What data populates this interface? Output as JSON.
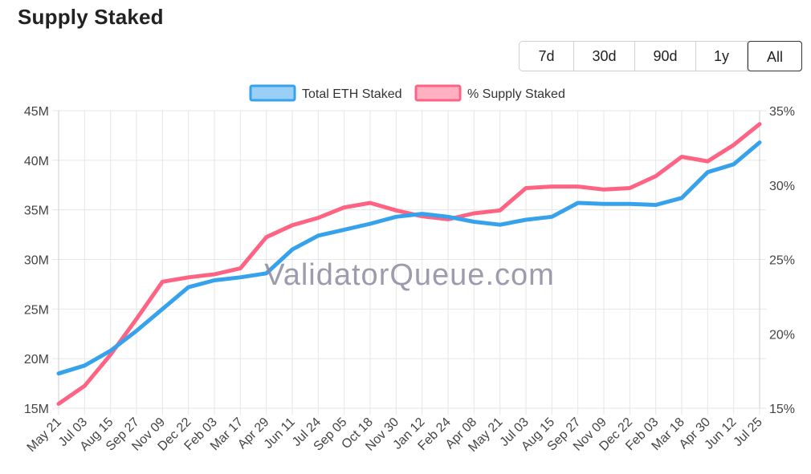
{
  "header": {
    "title": "Supply Staked"
  },
  "range_buttons": [
    {
      "label": "7d",
      "active": false
    },
    {
      "label": "30d",
      "active": false
    },
    {
      "label": "90d",
      "active": false
    },
    {
      "label": "1y",
      "active": false
    },
    {
      "label": "All",
      "active": true
    }
  ],
  "watermark": "ValidatorQueue.com",
  "colors": {
    "total_eth": "#36a2eb",
    "pct_supply": "#ff6384",
    "grid": "#e6e6e6"
  },
  "chart_data": {
    "type": "line",
    "x_tick_labels": [
      "May 21",
      "Jul 03",
      "Aug 15",
      "Sep 27",
      "Nov 09",
      "Dec 22",
      "Feb 03",
      "Mar 17",
      "Apr 29",
      "Jun 11",
      "Jul 24",
      "Sep 05",
      "Oct 18",
      "Nov 30",
      "Jan 12",
      "Feb 24",
      "Apr 08",
      "May 21",
      "Jul 03",
      "Aug 15",
      "Sep 27",
      "Nov 09",
      "Dec 22",
      "Feb 03",
      "Mar 18",
      "Apr 30",
      "Jun 12",
      "Jul 25"
    ],
    "y_left": {
      "ticks": [
        "15M",
        "20M",
        "25M",
        "30M",
        "35M",
        "40M",
        "45M"
      ],
      "range": [
        15,
        45
      ],
      "unit": "M"
    },
    "y_right": {
      "ticks": [
        "15%",
        "20%",
        "25%",
        "30%",
        "35%"
      ],
      "range": [
        15,
        35
      ],
      "unit": "%"
    },
    "grid": true,
    "legend": "top-center",
    "series": [
      {
        "name": "Total ETH Staked",
        "axis": "left",
        "color": "#36a2eb",
        "values": [
          18.5,
          19.3,
          20.8,
          22.8,
          25.0,
          27.2,
          27.9,
          28.2,
          28.6,
          31.0,
          32.4,
          33.0,
          33.6,
          34.3,
          34.6,
          34.3,
          33.8,
          33.5,
          34.0,
          34.3,
          35.7,
          35.6,
          35.6,
          35.5,
          36.2,
          38.8,
          39.6,
          41.8
        ]
      },
      {
        "name": "% Supply Staked",
        "axis": "right",
        "color": "#ff6384",
        "values": [
          15.3,
          16.5,
          18.6,
          21.0,
          23.5,
          23.8,
          24.0,
          24.4,
          26.5,
          27.3,
          27.8,
          28.5,
          28.8,
          28.3,
          27.9,
          27.7,
          28.1,
          28.3,
          29.8,
          29.9,
          29.9,
          29.7,
          29.8,
          30.6,
          31.9,
          31.6,
          32.7,
          34.1
        ]
      }
    ]
  }
}
